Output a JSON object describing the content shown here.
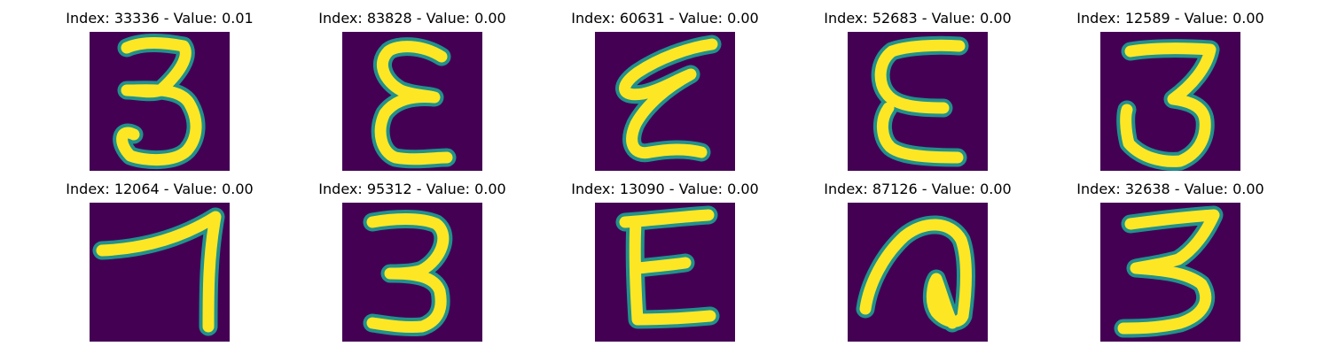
{
  "panels": [
    {
      "title": "Index: 33336 - Value: 0.01",
      "index": 33336,
      "value": 0.01
    },
    {
      "title": "Index: 83828 - Value: 0.00",
      "index": 83828,
      "value": 0.0
    },
    {
      "title": "Index: 60631 - Value: 0.00",
      "index": 60631,
      "value": 0.0
    },
    {
      "title": "Index: 52683 - Value: 0.00",
      "index": 52683,
      "value": 0.0
    },
    {
      "title": "Index: 12589 - Value: 0.00",
      "index": 12589,
      "value": 0.0
    },
    {
      "title": "Index: 12064 - Value: 0.00",
      "index": 12064,
      "value": 0.0
    },
    {
      "title": "Index: 95312 - Value: 0.00",
      "index": 95312,
      "value": 0.0
    },
    {
      "title": "Index: 13090 - Value: 0.00",
      "index": 13090,
      "value": 0.0
    },
    {
      "title": "Index: 87126 - Value: 0.00",
      "index": 87126,
      "value": 0.0
    },
    {
      "title": "Index: 32638 - Value: 0.00",
      "index": 32638,
      "value": 0.0
    }
  ],
  "colormap": {
    "background": "#440154",
    "edge": "#21918c",
    "foreground": "#fde725"
  }
}
